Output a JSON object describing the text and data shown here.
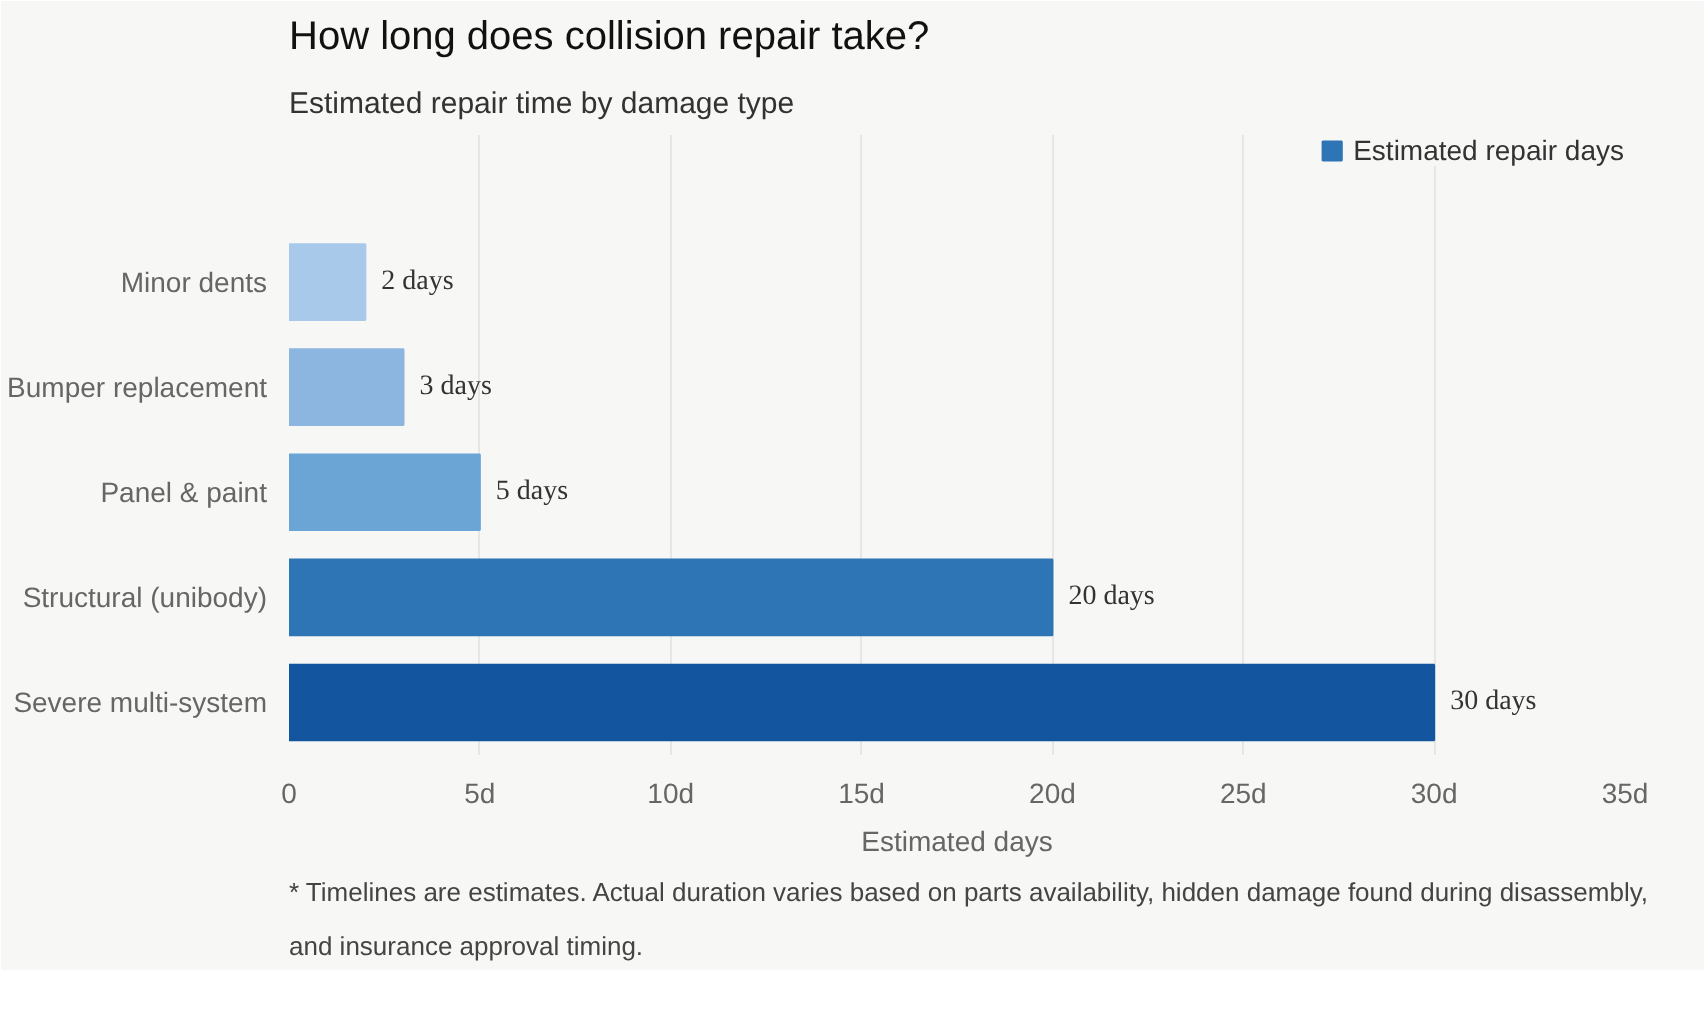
{
  "chart_data": {
    "type": "bar",
    "orientation": "horizontal",
    "title": "How long does collision repair take?",
    "subtitle": "Estimated repair time by damage type",
    "xlabel": "Estimated days",
    "categories": [
      "Minor dents",
      "Bumper replacement",
      "Panel & paint",
      "Structural (unibody)",
      "Severe multi-system"
    ],
    "series": [
      {
        "name": "Estimated repair days",
        "color": "#2e75b6",
        "values": [
          2,
          3,
          5,
          20,
          30
        ],
        "colors": [
          "#a9c9ea",
          "#8cb6e0",
          "#6ba5d6",
          "#2e75b6",
          "#13569f"
        ],
        "value_labels": [
          "2 days",
          "3 days",
          "5 days",
          "20 days",
          "30 days"
        ]
      }
    ],
    "xlim": [
      0,
      35
    ],
    "xticks": [
      0,
      {
        "value": 5,
        "label": "5d"
      },
      {
        "value": 10,
        "label": "10d"
      },
      {
        "value": 15,
        "label": "15d"
      },
      {
        "value": 20,
        "label": "20d"
      },
      {
        "value": 25,
        "label": "25d"
      },
      {
        "value": 30,
        "label": "30d"
      },
      {
        "value": 35,
        "label": "35d"
      }
    ],
    "grid": "x",
    "legend": "top right",
    "annotations": [
      "* Timelines are estimates. Actual duration varies based on parts availability, hidden damage found during disassembly, and insurance approval timing."
    ]
  }
}
